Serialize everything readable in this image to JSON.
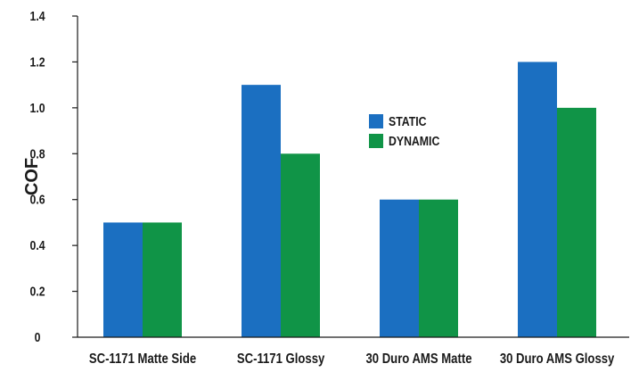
{
  "chart_data": {
    "type": "bar",
    "title": "",
    "xlabel": "",
    "ylabel": "COF",
    "categories": [
      "SC-1171 Matte Side",
      "SC-1171 Glossy",
      "30 Duro AMS Matte",
      "30 Duro AMS Glossy"
    ],
    "series": [
      {
        "name": "STATIC",
        "color": "#1b6fc1",
        "values": [
          0.5,
          1.1,
          0.6,
          1.2
        ]
      },
      {
        "name": "DYNAMIC",
        "color": "#109447",
        "values": [
          0.5,
          0.8,
          0.6,
          1.0
        ]
      }
    ],
    "ylim": [
      0,
      1.4
    ],
    "yticks": [
      "0",
      "0.2",
      "0.4",
      "0.6",
      "0.8",
      "1.0",
      "1.2",
      "1.4"
    ],
    "grid": false,
    "legend_position": "center"
  }
}
